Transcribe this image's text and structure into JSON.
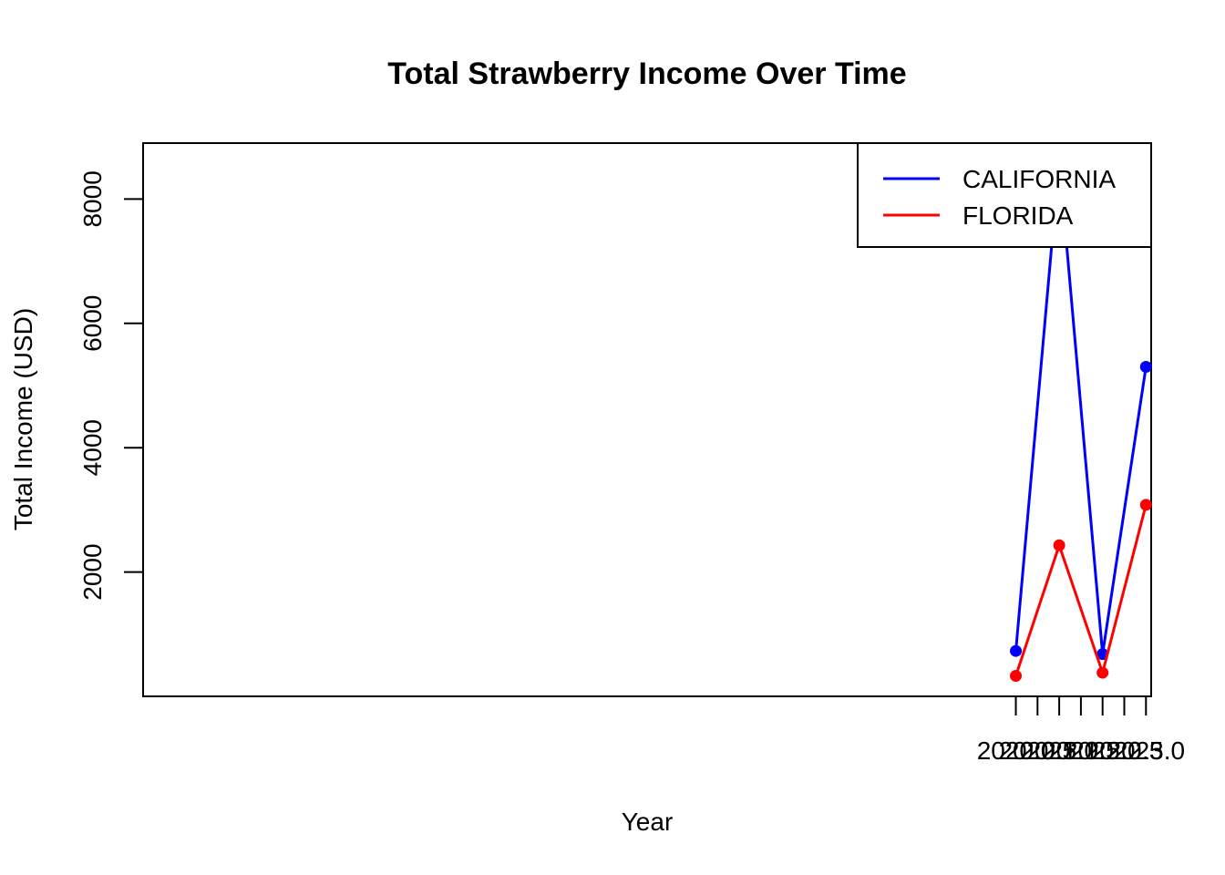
{
  "chart_data": {
    "type": "line",
    "title": "Total Strawberry Income Over Time",
    "xlabel": "Year",
    "ylabel": "Total Income (USD)",
    "xlim": [
      1999.88,
      2023.12
    ],
    "ylim": [
      0,
      8900
    ],
    "x_ticks": [
      2020.0,
      2020.5,
      2021.0,
      2021.5,
      2022.0,
      2022.5,
      2023.0
    ],
    "x_tick_labels": [
      "2020.0",
      "2020.5",
      "2021.0",
      "2021.5",
      "2022.0",
      "2022.5",
      "2023.0"
    ],
    "y_ticks": [
      2000,
      4000,
      6000,
      8000
    ],
    "y_tick_labels": [
      "2000",
      "4000",
      "6000",
      "8000"
    ],
    "grid": false,
    "legend_position": "top-right",
    "x": [
      2020,
      2021,
      2022,
      2023
    ],
    "series": [
      {
        "name": "CALIFORNIA",
        "color": "#0000ff",
        "values": [
          730,
          8620,
          680,
          5300
        ]
      },
      {
        "name": "FLORIDA",
        "color": "#ff0000",
        "values": [
          330,
          2430,
          380,
          3080
        ]
      }
    ]
  }
}
